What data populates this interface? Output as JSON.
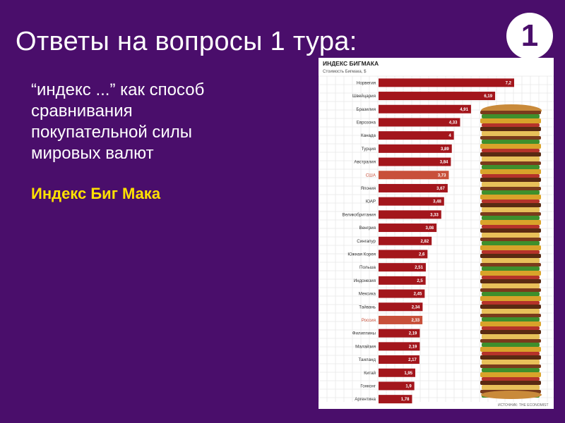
{
  "slide": {
    "title": "Ответы на вопросы 1 тура:",
    "round_number": "1",
    "question_lines": [
      "“индекс ...” как способ",
      "сравнивания",
      "покупательной силы",
      "мировых валют"
    ],
    "answer": "Индекс Биг Мака"
  },
  "chart_data": {
    "type": "bar",
    "orientation": "horizontal",
    "title": "ИНДЕКС БИГМАКА",
    "subtitle": "Стоимость Бигмака, $",
    "source": "ИСТОЧНИК: THE ECONOMIST",
    "categories": [
      "Норвегия",
      "Швейцария",
      "Бразилия",
      "Еврозона",
      "Канада",
      "Турция",
      "Австралия",
      "США",
      "Япония",
      "ЮАР",
      "Великобритания",
      "Венгрия",
      "Сингапур",
      "Южная Корея",
      "Польша",
      "Индонезия",
      "Мексика",
      "Тайвань",
      "Россия",
      "Филиппины",
      "Малайзия",
      "Таиланд",
      "Китай",
      "Гонконг",
      "Аргентина"
    ],
    "value_labels": [
      "7,2",
      "6,19",
      "4,91",
      "4,33",
      "4",
      "3,89",
      "3,84",
      "3,73",
      "3,67",
      "3,48",
      "3,33",
      "3,08",
      "2,82",
      "2,6",
      "2,51",
      "2,5",
      "2,45",
      "2,34",
      "2,33",
      "2,19",
      "2,19",
      "2,17",
      "1,95",
      "1,9",
      "1,78"
    ],
    "values": [
      7.2,
      6.19,
      4.91,
      4.33,
      4,
      3.89,
      3.84,
      3.73,
      3.67,
      3.48,
      3.33,
      3.08,
      2.82,
      2.6,
      2.51,
      2.5,
      2.45,
      2.34,
      2.33,
      2.19,
      2.19,
      2.17,
      1.95,
      1.9,
      1.78
    ],
    "highlighted_categories": [
      "США",
      "Россия"
    ],
    "xlim": [
      0,
      7.2
    ],
    "grid": true,
    "colors": {
      "bar": "#a3161c",
      "bar_highlight": "#c8503a",
      "label": "#333333",
      "label_highlight": "#c8503a",
      "grid": "#dddddd"
    }
  }
}
